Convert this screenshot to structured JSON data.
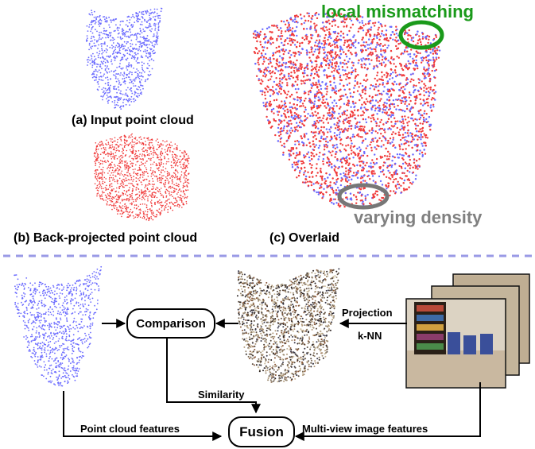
{
  "captions": {
    "input": "(a) Input point cloud",
    "backprojected": "(b) Back-projected point cloud",
    "overlaid": "(c) Overlaid"
  },
  "annotations": {
    "local_mismatching": "local mismatching",
    "varying_density": "varying density"
  },
  "pipeline": {
    "comparison": "Comparison",
    "fusion": "Fusion",
    "projection": "Projection",
    "knn": "k-NN",
    "similarity": "Similarity",
    "point_cloud_features": "Point cloud features",
    "multiview_features": "Multi-view image features"
  },
  "colors": {
    "input_points": "#6b6bff",
    "backprojected_points": "#f03c3c",
    "annotation_green": "#1a9a1a",
    "annotation_gray": "#808080",
    "separator": "#9a9ae6"
  }
}
